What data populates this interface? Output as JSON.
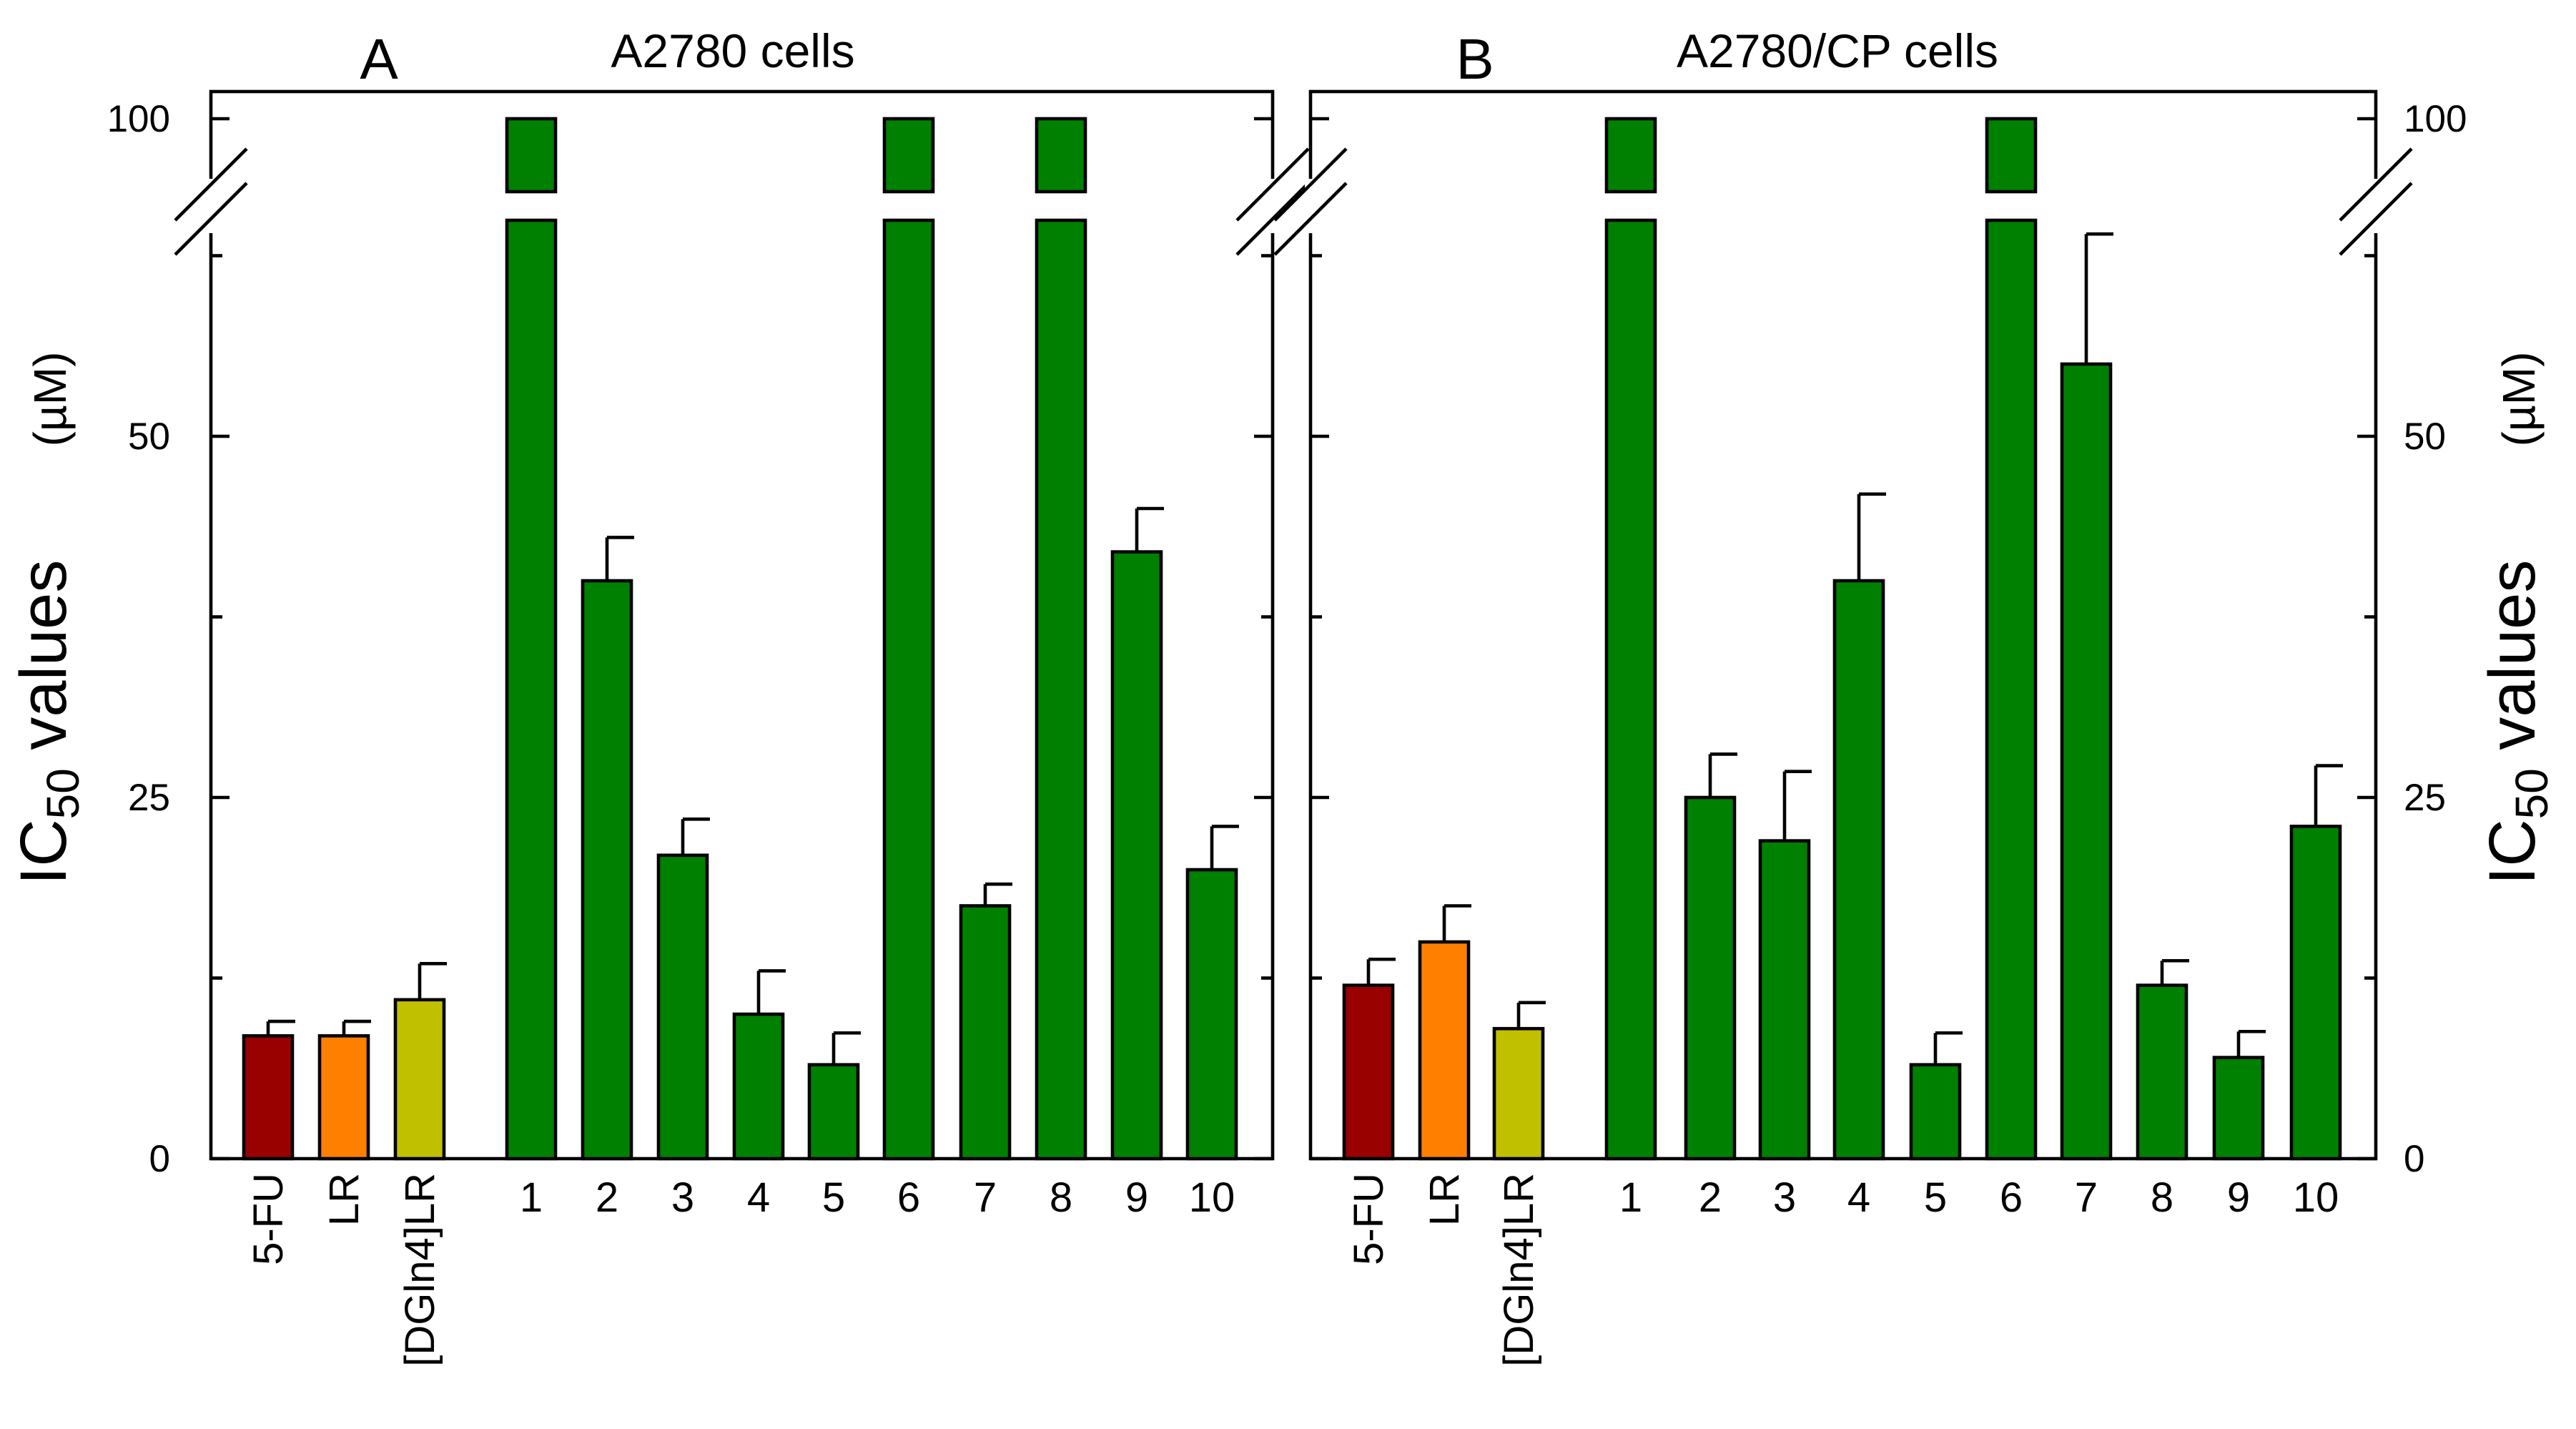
{
  "chart_data": [
    {
      "type": "bar",
      "panel": "A",
      "title": "A2780 cells",
      "ylabel": "IC50 values",
      "ylabel_main": "IC",
      "ylabel_sub": "50",
      "ylabel_rest": " values",
      "unit": "(µM)",
      "yaxis_side": "left",
      "ylim": [
        0,
        100
      ],
      "axis_break": [
        73,
        97
      ],
      "yticks": [
        0,
        25,
        50,
        100
      ],
      "ytick_labels": [
        "0",
        "25",
        "50",
        "100"
      ],
      "categories": [
        "5-FU",
        "LR",
        "[DGln4]LR",
        "1",
        "2",
        "3",
        "4",
        "5",
        "6",
        "7",
        "8",
        "9",
        "10"
      ],
      "values": [
        8.5,
        8.5,
        11,
        100,
        40,
        21,
        10,
        6.5,
        100,
        17.5,
        100,
        42,
        20
      ],
      "errors": [
        1,
        1,
        2.5,
        0,
        3,
        2.5,
        3,
        2.2,
        0,
        1.5,
        0,
        3,
        3
      ],
      "colors": [
        "#990000",
        "#ff8000",
        "#c0c000",
        "#008000",
        "#008000",
        "#008000",
        "#008000",
        "#008000",
        "#008000",
        "#008000",
        "#008000",
        "#008000",
        "#008000"
      ]
    },
    {
      "type": "bar",
      "panel": "B",
      "title": "A2780/CP cells",
      "ylabel": "IC50 values",
      "ylabel_main": "IC",
      "ylabel_sub": "50",
      "ylabel_rest": " values",
      "unit": "(µM)",
      "yaxis_side": "right",
      "ylim": [
        0,
        100
      ],
      "axis_break": [
        73,
        97
      ],
      "yticks": [
        0,
        25,
        50,
        100
      ],
      "ytick_labels": [
        "0",
        "25",
        "50",
        "100"
      ],
      "categories": [
        "5-FU",
        "LR",
        "[DGln4]LR",
        "1",
        "2",
        "3",
        "4",
        "5",
        "6",
        "7",
        "8",
        "9",
        "10"
      ],
      "values": [
        12,
        15,
        9,
        100,
        25,
        22,
        40,
        6.5,
        100,
        55,
        12,
        7,
        23
      ],
      "errors": [
        1.8,
        2.5,
        1.8,
        0,
        3,
        4.8,
        6,
        2.2,
        0,
        9,
        1.7,
        1.8,
        4.2
      ],
      "colors": [
        "#990000",
        "#ff8000",
        "#c0c000",
        "#008000",
        "#008000",
        "#008000",
        "#008000",
        "#008000",
        "#008000",
        "#008000",
        "#008000",
        "#008000",
        "#008000"
      ]
    }
  ]
}
